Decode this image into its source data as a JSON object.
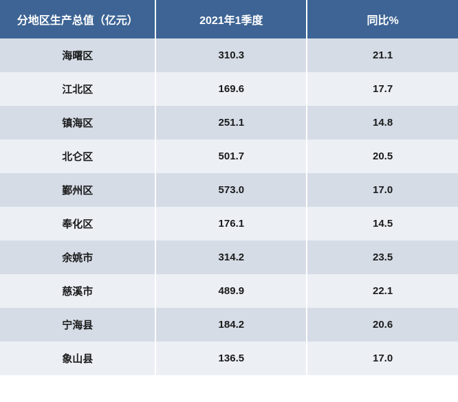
{
  "table": {
    "header_bg": "#3d6494",
    "header_fg": "#ffffff",
    "row_even_bg": "#d5dce6",
    "row_odd_bg": "#ecf0f5",
    "cell_fg": "#1a1a1a",
    "columns": [
      {
        "key": "region",
        "label": "分地区生产总值（亿元）"
      },
      {
        "key": "value",
        "label": "2021年1季度"
      },
      {
        "key": "yoy",
        "label": "同比%"
      }
    ],
    "rows": [
      {
        "region": "海曙区",
        "value": "310.3",
        "yoy": "21.1"
      },
      {
        "region": "江北区",
        "value": "169.6",
        "yoy": "17.7"
      },
      {
        "region": "镇海区",
        "value": "251.1",
        "yoy": "14.8"
      },
      {
        "region": "北仑区",
        "value": "501.7",
        "yoy": "20.5"
      },
      {
        "region": "鄞州区",
        "value": "573.0",
        "yoy": "17.0"
      },
      {
        "region": "奉化区",
        "value": "176.1",
        "yoy": "14.5"
      },
      {
        "region": "余姚市",
        "value": "314.2",
        "yoy": "23.5"
      },
      {
        "region": "慈溪市",
        "value": "489.9",
        "yoy": "22.1"
      },
      {
        "region": "宁海县",
        "value": "184.2",
        "yoy": "20.6"
      },
      {
        "region": "象山县",
        "value": "136.5",
        "yoy": "17.0"
      }
    ]
  }
}
